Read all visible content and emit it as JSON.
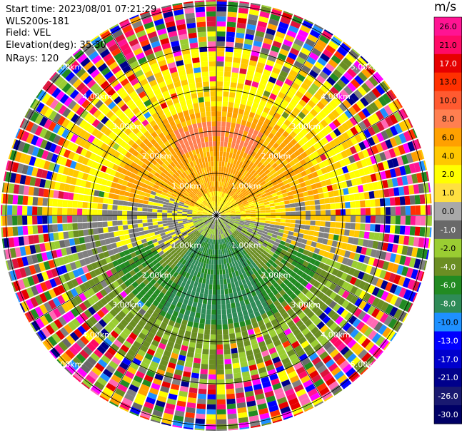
{
  "info": {
    "start_time": "Start time: 2023/08/01 07:21:29",
    "instrument": "WLS200s-181",
    "field": "Field: VEL",
    "elevation": "Elevation(deg): 35.30",
    "nrays": "NRays: 120"
  },
  "colorbar": {
    "unit": "m/s",
    "ticks": [
      "26.0",
      "21.0",
      "17.0",
      "13.0",
      "10.0",
      "8.0",
      "6.0",
      "4.0",
      "2.0",
      "1.0",
      "0.0",
      "-1.0",
      "-2.0",
      "-4.0",
      "-6.0",
      "-8.0",
      "-10.0",
      "-13.0",
      "-17.0",
      "-21.0",
      "-26.0",
      "-30.0"
    ],
    "colors": [
      "#ff1493",
      "#ff0a66",
      "#e60000",
      "#ff3000",
      "#ff5a30",
      "#ff7f50",
      "#ffa000",
      "#ffc800",
      "#ffff00",
      "#ffe040",
      "#a9a9a9",
      "#696969",
      "#9acd32",
      "#6b8e23",
      "#228b22",
      "#2e8b57",
      "#1e90ff",
      "#0000ff",
      "#0000cd",
      "#00008b",
      "#191970",
      "#000066"
    ]
  },
  "chart_data": {
    "type": "heatmap",
    "projection": "polar PPI",
    "field": "VEL",
    "units": "m/s",
    "nrays": 120,
    "ring_labels": [
      "1.00km",
      "2.00km",
      "3.00km",
      "4.00km",
      "5.00km"
    ],
    "radial_velocity_regions": [
      {
        "sector": "north (upper half, near range)",
        "velocity_ms": [
          2.0,
          8.0
        ]
      },
      {
        "sector": "south (lower half, near range)",
        "velocity_ms": [
          -8.0,
          -2.0
        ]
      },
      {
        "sector": "east / west near zero line",
        "velocity_ms": [
          -1.0,
          1.0
        ]
      },
      {
        "sector": "outer range (>4 km)",
        "velocity_ms": "noise, -30.0 to 26.0"
      }
    ]
  }
}
